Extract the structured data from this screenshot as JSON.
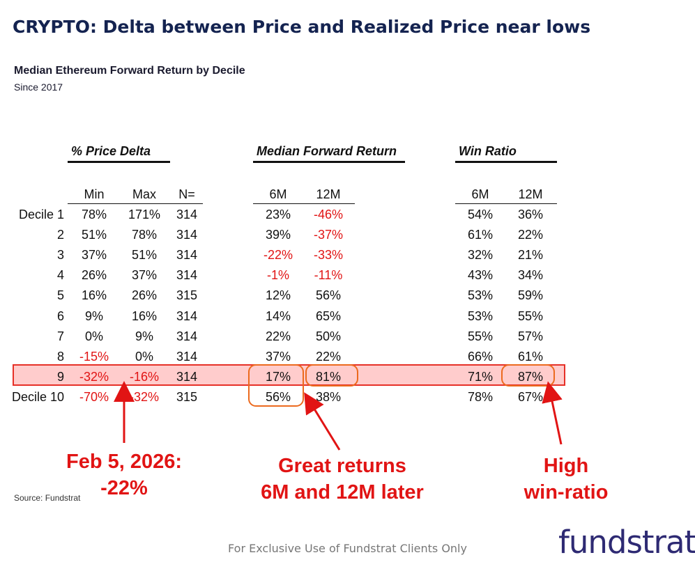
{
  "title": "CRYPTO: Delta between Price and Realized Price near lows",
  "subtitle": "Median Ethereum Forward Return by Decile",
  "since": "Since 2017",
  "groups": {
    "price_delta": "% Price Delta",
    "forward_return": "Median Forward Return",
    "win_ratio": "Win Ratio"
  },
  "columns": {
    "min": "Min",
    "max": "Max",
    "n": "N=",
    "fr_6m": "6M",
    "fr_12m": "12M",
    "wr_6m": "6M",
    "wr_12m": "12M"
  },
  "rows": [
    {
      "label": "Decile 1",
      "min": "78%",
      "max": "171%",
      "n": "314",
      "fr6": "23%",
      "fr12": "-46%",
      "wr6": "54%",
      "wr12": "36%"
    },
    {
      "label": "2",
      "min": "51%",
      "max": "78%",
      "n": "314",
      "fr6": "39%",
      "fr12": "-37%",
      "wr6": "61%",
      "wr12": "22%"
    },
    {
      "label": "3",
      "min": "37%",
      "max": "51%",
      "n": "314",
      "fr6": "-22%",
      "fr12": "-33%",
      "wr6": "32%",
      "wr12": "21%"
    },
    {
      "label": "4",
      "min": "26%",
      "max": "37%",
      "n": "314",
      "fr6": "-1%",
      "fr12": "-11%",
      "wr6": "43%",
      "wr12": "34%"
    },
    {
      "label": "5",
      "min": "16%",
      "max": "26%",
      "n": "315",
      "fr6": "12%",
      "fr12": "56%",
      "wr6": "53%",
      "wr12": "59%"
    },
    {
      "label": "6",
      "min": "9%",
      "max": "16%",
      "n": "314",
      "fr6": "14%",
      "fr12": "65%",
      "wr6": "53%",
      "wr12": "55%"
    },
    {
      "label": "7",
      "min": "0%",
      "max": "9%",
      "n": "314",
      "fr6": "22%",
      "fr12": "50%",
      "wr6": "55%",
      "wr12": "57%"
    },
    {
      "label": "8",
      "min": "-15%",
      "max": "0%",
      "n": "314",
      "fr6": "37%",
      "fr12": "22%",
      "wr6": "66%",
      "wr12": "61%"
    },
    {
      "label": "9",
      "min": "-32%",
      "max": "-16%",
      "n": "314",
      "fr6": "17%",
      "fr12": "81%",
      "wr6": "71%",
      "wr12": "87%"
    },
    {
      "label": "Decile 10",
      "min": "-70%",
      "max": "-32%",
      "n": "315",
      "fr6": "56%",
      "fr12": "38%",
      "wr6": "78%",
      "wr12": "67%"
    }
  ],
  "callouts": {
    "date_line1": "Feb 5, 2026:",
    "date_line2": "-22%",
    "returns_line1": "Great returns",
    "returns_line2": "6M and 12M later",
    "win_line1": "High",
    "win_line2": "win-ratio"
  },
  "source": "Source: Fundstrat",
  "footer": "For Exclusive Use of Fundstrat Clients Only",
  "logo": "fundstrat",
  "colors": {
    "title": "#142350",
    "negative": "#e11414",
    "highlight_fill": "#ffcccc",
    "highlight_border": "#e63027",
    "oval": "#ec6a1e",
    "logo": "#2e2a73"
  }
}
